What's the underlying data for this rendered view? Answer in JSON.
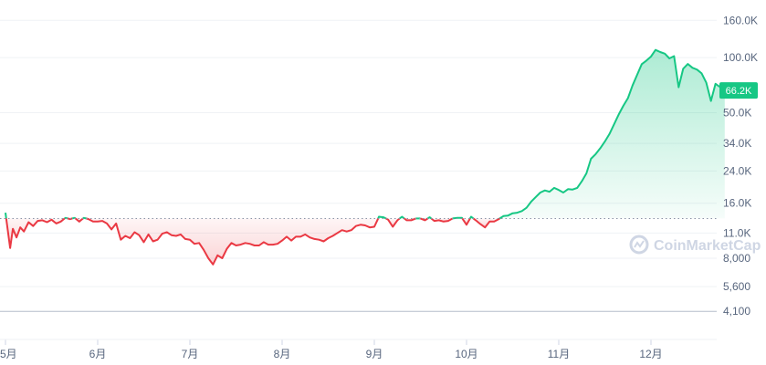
{
  "chart_data": {
    "type": "area",
    "scale": "log",
    "ylim": [
      3500,
      180000
    ],
    "y_ticks": [
      {
        "value": 160000,
        "label": "160.0K"
      },
      {
        "value": 100000,
        "label": "100.0K"
      },
      {
        "value": 50000,
        "label": "50.0K"
      },
      {
        "value": 34000,
        "label": "34.0K"
      },
      {
        "value": 24000,
        "label": "24.0K"
      },
      {
        "value": 16000,
        "label": "16.0K"
      },
      {
        "value": 11000,
        "label": "11.0K"
      },
      {
        "value": 8000,
        "label": "8,000"
      },
      {
        "value": 5600,
        "label": "5,600"
      },
      {
        "value": 4100,
        "label": "4,100"
      }
    ],
    "x_ticks": [
      {
        "x": 0,
        "label": "5月"
      },
      {
        "x": 1,
        "label": "6月"
      },
      {
        "x": 2,
        "label": "7月"
      },
      {
        "x": 3,
        "label": "8月"
      },
      {
        "x": 4,
        "label": "9月"
      },
      {
        "x": 5,
        "label": "10月"
      },
      {
        "x": 6,
        "label": "11月"
      },
      {
        "x": 7,
        "label": "12月"
      }
    ],
    "baseline": 13200,
    "reference_line": 4100,
    "current_value": 66200,
    "current_label": "66.2K",
    "x": [
      0,
      0.05,
      0.08,
      0.12,
      0.16,
      0.2,
      0.25,
      0.3,
      0.35,
      0.4,
      0.45,
      0.5,
      0.55,
      0.6,
      0.65,
      0.7,
      0.75,
      0.8,
      0.85,
      0.9,
      0.95,
      1.0,
      1.05,
      1.1,
      1.15,
      1.2,
      1.25,
      1.3,
      1.35,
      1.4,
      1.45,
      1.5,
      1.55,
      1.6,
      1.65,
      1.7,
      1.75,
      1.8,
      1.85,
      1.9,
      1.95,
      2.0,
      2.05,
      2.1,
      2.15,
      2.2,
      2.25,
      2.3,
      2.35,
      2.4,
      2.45,
      2.5,
      2.55,
      2.6,
      2.65,
      2.7,
      2.75,
      2.8,
      2.85,
      2.9,
      2.95,
      3.0,
      3.05,
      3.1,
      3.15,
      3.2,
      3.25,
      3.3,
      3.35,
      3.4,
      3.45,
      3.5,
      3.55,
      3.6,
      3.65,
      3.7,
      3.75,
      3.8,
      3.85,
      3.9,
      3.95,
      4.0,
      4.05,
      4.1,
      4.15,
      4.2,
      4.25,
      4.3,
      4.35,
      4.4,
      4.45,
      4.5,
      4.55,
      4.6,
      4.65,
      4.7,
      4.75,
      4.8,
      4.85,
      4.9,
      4.95,
      5.0,
      5.05,
      5.1,
      5.15,
      5.2,
      5.25,
      5.3,
      5.35,
      5.4,
      5.45,
      5.5,
      5.55,
      5.6,
      5.65,
      5.7,
      5.75,
      5.8,
      5.85,
      5.9,
      5.95,
      6.0,
      6.05,
      6.1,
      6.15,
      6.2,
      6.25,
      6.3,
      6.35,
      6.4,
      6.45,
      6.5,
      6.55,
      6.6,
      6.65,
      6.7,
      6.75,
      6.8,
      6.85,
      6.9,
      6.95,
      7.0,
      7.05,
      7.1,
      7.15,
      7.2,
      7.25,
      7.3,
      7.35,
      7.4,
      7.45,
      7.5,
      7.55,
      7.6,
      7.65,
      7.7,
      7.75,
      7.8
    ],
    "values": [
      14200,
      9100,
      11600,
      10400,
      11800,
      11200,
      12600,
      12000,
      12800,
      12900,
      12600,
      13000,
      12400,
      12700,
      13300,
      13100,
      13300,
      12700,
      13300,
      13100,
      12700,
      12700,
      12800,
      12400,
      11500,
      12400,
      10100,
      10600,
      10300,
      11100,
      10700,
      9800,
      10800,
      9900,
      10100,
      10900,
      11100,
      10700,
      10600,
      10800,
      10200,
      10100,
      9600,
      9700,
      8900,
      8000,
      7400,
      8300,
      8000,
      9000,
      9700,
      9400,
      9500,
      9700,
      9600,
      9400,
      9400,
      9800,
      9500,
      9500,
      9600,
      10000,
      10500,
      10000,
      10500,
      10500,
      10800,
      10400,
      10200,
      10100,
      9900,
      10300,
      10600,
      11000,
      11400,
      11200,
      11400,
      12000,
      12200,
      12100,
      11800,
      11900,
      13500,
      13400,
      13000,
      11900,
      12900,
      13500,
      12900,
      12900,
      13200,
      13200,
      12900,
      13400,
      12800,
      12900,
      12700,
      12800,
      13200,
      13300,
      13300,
      12200,
      13500,
      12900,
      12300,
      11800,
      12700,
      12700,
      13100,
      13600,
      13700,
      14100,
      14200,
      14500,
      15100,
      16300,
      17300,
      18300,
      18800,
      18500,
      19400,
      18900,
      18300,
      19100,
      19000,
      19400,
      21100,
      23300,
      28000,
      29700,
      32000,
      34800,
      38200,
      43200,
      48900,
      54500,
      60100,
      70400,
      80500,
      92100,
      96400,
      101400,
      110200,
      107400,
      105100,
      99000,
      101900,
      68900,
      87000,
      92300,
      88000,
      86000,
      82000,
      73000,
      58000,
      72000,
      69000,
      66200
    ]
  },
  "watermark": "CoinMarketCap",
  "colors": {
    "up": "#16c784",
    "down": "#ea3943",
    "grid": "#eff2f5",
    "axis_text": "#58667e"
  }
}
